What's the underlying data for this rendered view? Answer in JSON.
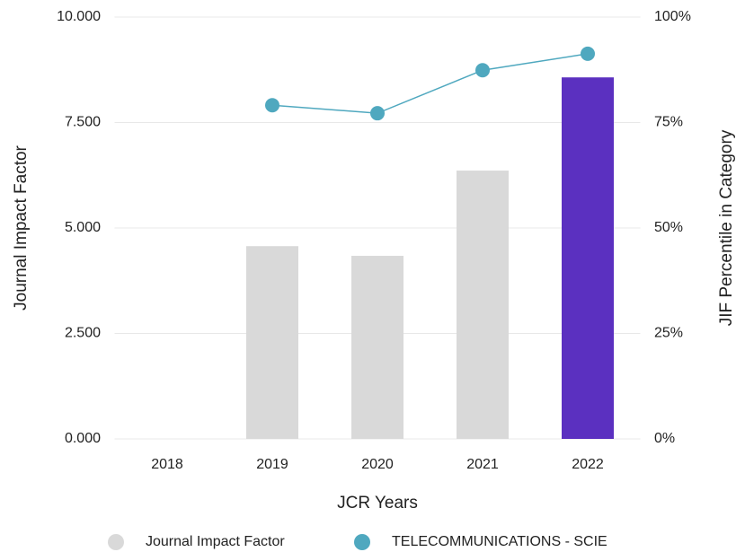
{
  "chart_data": {
    "type": "bar",
    "x_label": "JCR Years",
    "y_label": "Journal Impact Factor",
    "y2_label": "JIF Percentile in Category",
    "categories": [
      "2018",
      "2019",
      "2020",
      "2021",
      "2022"
    ],
    "series": [
      {
        "name": "Journal Impact Factor",
        "type": "bar",
        "color": "#d9d9d9",
        "colors": [
          "#d9d9d9",
          "#d9d9d9",
          "#d9d9d9",
          "#d9d9d9",
          "#5b30c0"
        ],
        "values": [
          null,
          4.57,
          4.34,
          6.36,
          8.57
        ]
      },
      {
        "name": "TELECOMMUNICATIONS - SCIE",
        "type": "line",
        "axis": "y2",
        "color": "#4fa8bf",
        "values": [
          null,
          79.1,
          77.2,
          87.4,
          91.3
        ]
      }
    ],
    "ylim": [
      0,
      10
    ],
    "yticks": [
      {
        "value": 0,
        "label": "0.000"
      },
      {
        "value": 2.5,
        "label": "2.500"
      },
      {
        "value": 5,
        "label": "5.000"
      },
      {
        "value": 7.5,
        "label": "7.500"
      },
      {
        "value": 10,
        "label": "10.000"
      }
    ],
    "y2lim": [
      0,
      100
    ],
    "y2ticks": [
      {
        "value": 0,
        "label": "0%"
      },
      {
        "value": 25,
        "label": "25%"
      },
      {
        "value": 50,
        "label": "50%"
      },
      {
        "value": 75,
        "label": "75%"
      },
      {
        "value": 100,
        "label": "100%"
      }
    ],
    "grid": true,
    "legend": "bottom"
  }
}
